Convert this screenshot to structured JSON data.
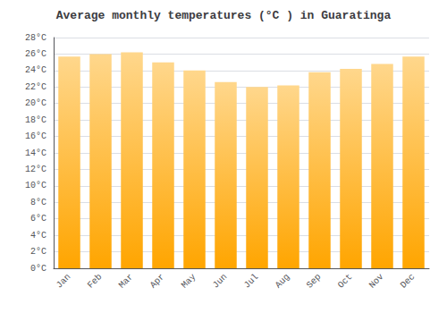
{
  "chart_data": {
    "type": "bar",
    "title": "Average monthly temperatures (°C ) in Guaratinga",
    "categories": [
      "Jan",
      "Feb",
      "Mar",
      "Apr",
      "May",
      "Jun",
      "Jul",
      "Aug",
      "Sep",
      "Oct",
      "Nov",
      "Dec"
    ],
    "values": [
      25.7,
      26.0,
      26.2,
      25.0,
      24.0,
      22.6,
      22.0,
      22.2,
      23.8,
      24.2,
      24.8,
      25.7
    ],
    "color": "#FFA500",
    "ylim": [
      0,
      28
    ],
    "yticks": [
      {
        "value": 0,
        "label": "0°C"
      },
      {
        "value": 2,
        "label": "2°C"
      },
      {
        "value": 4,
        "label": "4°C"
      },
      {
        "value": 6,
        "label": "6°C"
      },
      {
        "value": 8,
        "label": "8°C"
      },
      {
        "value": 10,
        "label": "10°C"
      },
      {
        "value": 12,
        "label": "12°C"
      },
      {
        "value": 14,
        "label": "14°C"
      },
      {
        "value": 16,
        "label": "16°C"
      },
      {
        "value": 18,
        "label": "18°C"
      },
      {
        "value": 20,
        "label": "20°C"
      },
      {
        "value": 22,
        "label": "22°C"
      },
      {
        "value": 24,
        "label": "24°C"
      },
      {
        "value": 26,
        "label": "26°C"
      },
      {
        "value": 28,
        "label": "28°C"
      }
    ],
    "grid": true
  }
}
